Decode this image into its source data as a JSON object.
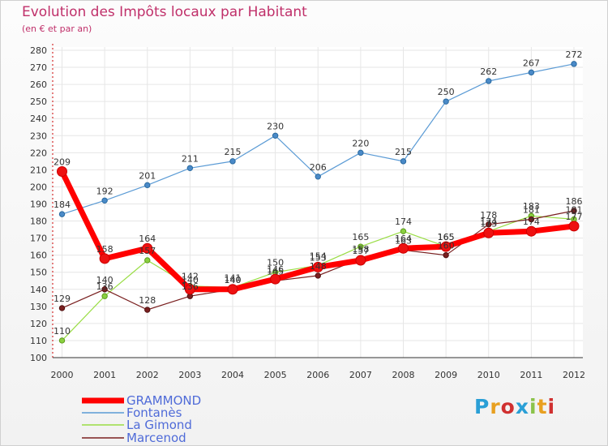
{
  "title": "Evolution des Impôts locaux par Habitant",
  "subtitle": "(en € et par an)",
  "logo_text": "Proxiti",
  "chart_data": {
    "type": "line",
    "title": "Evolution des Impôts locaux par Habitant",
    "subtitle": "(en € et par an)",
    "xlabel": "",
    "ylabel": "",
    "x": [
      "2000",
      "2001",
      "2002",
      "2003",
      "2004",
      "2005",
      "2006",
      "2007",
      "2008",
      "2009",
      "2010",
      "2011",
      "2012"
    ],
    "ylim": [
      100,
      280
    ],
    "yticks": [
      100,
      110,
      120,
      130,
      140,
      150,
      160,
      170,
      180,
      190,
      200,
      210,
      220,
      230,
      240,
      250,
      260,
      270,
      280
    ],
    "grid": true,
    "legend_position": "bottom-left",
    "series": [
      {
        "name": "GRAMMOND",
        "color": "#ff0000",
        "values": [
          209,
          158,
          164,
          140,
          140,
          146,
          153,
          157,
          164,
          165,
          173,
          174,
          177
        ]
      },
      {
        "name": "Fontanès",
        "color": "#5b9bd5",
        "values": [
          184,
          192,
          201,
          211,
          215,
          230,
          206,
          220,
          215,
          250,
          262,
          267,
          272
        ]
      },
      {
        "name": "La Gimond",
        "color": "#99dd44",
        "values": [
          110,
          136,
          157,
          142,
          141,
          150,
          154,
          165,
          174,
          165,
          174,
          183,
          181
        ]
      },
      {
        "name": "Marcenod",
        "color": "#7a2020",
        "values": [
          129,
          140,
          128,
          136,
          140,
          145,
          148,
          158,
          163,
          160,
          178,
          181,
          186
        ]
      }
    ]
  }
}
